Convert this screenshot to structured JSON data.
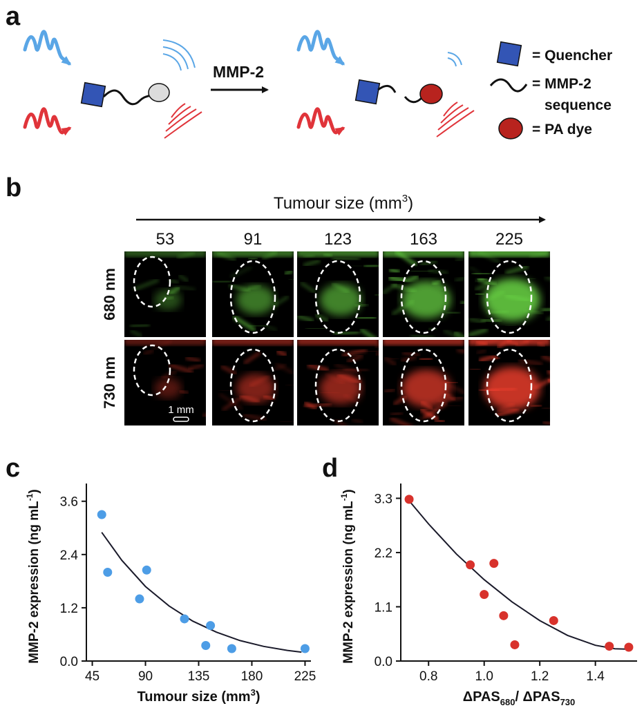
{
  "panel_a": {
    "letter": "a",
    "arrow_label": "MMP-2",
    "legend": {
      "quencher": "= Quencher",
      "sequence_line1": "= MMP-2",
      "sequence_line2": "sequence",
      "dye": "= PA dye"
    },
    "colors": {
      "blue_wave": "#5aa6e6",
      "red_wave": "#e0343a",
      "quencher": "#3355b5",
      "dye": "#b8231e",
      "dye_off": "#dcdcdc"
    }
  },
  "panel_b": {
    "letter": "b",
    "axis_title": "Tumour size (mm",
    "axis_title_sup": "3",
    "axis_title_end": ")",
    "sizes": [
      "53",
      "91",
      "123",
      "163",
      "225"
    ],
    "rows": [
      {
        "label": "680 nm",
        "color": "#6fe04a"
      },
      {
        "label": "730 nm",
        "color": "#f2402e"
      }
    ],
    "scale_bar": "1 mm",
    "signal_levels": [
      0.15,
      0.45,
      0.55,
      0.75,
      0.95
    ]
  },
  "chart_data": [
    {
      "panel": "c",
      "type": "scatter",
      "ylabel": "MMP-2 expression (ng mL",
      "ylabel_sup": "-1",
      "ylabel_end": ")",
      "xlabel": "Tumour size (mm",
      "xlabel_sup": "3",
      "xlabel_end": ")",
      "xlim": [
        40,
        230
      ],
      "ylim": [
        0,
        4.0
      ],
      "xticks": [
        "45",
        "90",
        "135",
        "180",
        "225"
      ],
      "xtick_values": [
        45,
        90,
        135,
        180,
        225
      ],
      "yticks": [
        "0.0",
        "1.2",
        "2.4",
        "3.6"
      ],
      "ytick_values": [
        0.0,
        1.2,
        2.4,
        3.6
      ],
      "point_color": "#4d9de6",
      "points": [
        {
          "x": 53,
          "y": 3.3
        },
        {
          "x": 58,
          "y": 2.0
        },
        {
          "x": 85,
          "y": 1.4
        },
        {
          "x": 91,
          "y": 2.05
        },
        {
          "x": 123,
          "y": 0.95
        },
        {
          "x": 141,
          "y": 0.35
        },
        {
          "x": 145,
          "y": 0.8
        },
        {
          "x": 163,
          "y": 0.28
        },
        {
          "x": 225,
          "y": 0.28
        }
      ],
      "fit": [
        {
          "x": 53,
          "y": 2.9
        },
        {
          "x": 70,
          "y": 2.27
        },
        {
          "x": 90,
          "y": 1.68
        },
        {
          "x": 110,
          "y": 1.24
        },
        {
          "x": 130,
          "y": 0.9
        },
        {
          "x": 150,
          "y": 0.65
        },
        {
          "x": 170,
          "y": 0.46
        },
        {
          "x": 190,
          "y": 0.33
        },
        {
          "x": 210,
          "y": 0.24
        },
        {
          "x": 222,
          "y": 0.2
        }
      ]
    },
    {
      "panel": "d",
      "type": "scatter",
      "ylabel": "MMP-2 expression (ng mL",
      "ylabel_sup": "-1",
      "ylabel_end": ")",
      "xlabel": "ΔPAS",
      "xlabel_sub1": "680",
      "xlabel_mid": "/ ΔPAS",
      "xlabel_sub2": "730",
      "xlim": [
        0.7,
        1.55
      ],
      "ylim": [
        0,
        3.6
      ],
      "xticks": [
        "0.8",
        "1.0",
        "1.2",
        "1.4"
      ],
      "xtick_values": [
        0.8,
        1.0,
        1.2,
        1.4
      ],
      "yticks": [
        "0.0",
        "1.1",
        "2.2",
        "3.3"
      ],
      "ytick_values": [
        0.0,
        1.1,
        2.2,
        3.3
      ],
      "point_color": "#d8322c",
      "points": [
        {
          "x": 0.73,
          "y": 3.28
        },
        {
          "x": 0.95,
          "y": 1.95
        },
        {
          "x": 1.0,
          "y": 1.35
        },
        {
          "x": 1.035,
          "y": 1.98
        },
        {
          "x": 1.07,
          "y": 0.92
        },
        {
          "x": 1.11,
          "y": 0.33
        },
        {
          "x": 1.25,
          "y": 0.82
        },
        {
          "x": 1.45,
          "y": 0.3
        },
        {
          "x": 1.52,
          "y": 0.28
        }
      ],
      "fit": [
        {
          "x": 0.73,
          "y": 3.25
        },
        {
          "x": 0.8,
          "y": 2.78
        },
        {
          "x": 0.9,
          "y": 2.17
        },
        {
          "x": 1.0,
          "y": 1.65
        },
        {
          "x": 1.1,
          "y": 1.2
        },
        {
          "x": 1.2,
          "y": 0.82
        },
        {
          "x": 1.3,
          "y": 0.52
        },
        {
          "x": 1.4,
          "y": 0.32
        },
        {
          "x": 1.47,
          "y": 0.25
        },
        {
          "x": 1.52,
          "y": 0.24
        }
      ]
    }
  ],
  "panel_letters": {
    "c": "c",
    "d": "d"
  }
}
